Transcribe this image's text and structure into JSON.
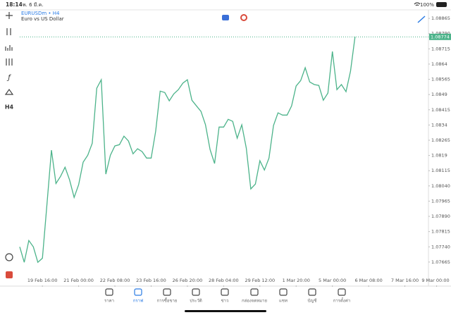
{
  "status_bar": {
    "time": "18:14",
    "date": "พ. 6 มี.ค.",
    "battery": "100%"
  },
  "symbol": {
    "name": "EURUSDm • H4",
    "description": "Euro vs US Dollar"
  },
  "toolbar": {
    "timeframe": "H4"
  },
  "chart_data": {
    "type": "line",
    "color": "#4cb38a",
    "values": [
      1.0774,
      1.07664,
      1.07771,
      1.0774,
      1.07664,
      1.07684,
      1.07948,
      1.08216,
      1.08052,
      1.08087,
      1.08132,
      1.0807,
      1.07983,
      1.08046,
      1.08157,
      1.08191,
      1.0825,
      1.08521,
      1.08563,
      1.08098,
      1.08191,
      1.08237,
      1.08243,
      1.08285,
      1.08261,
      1.08198,
      1.08223,
      1.08209,
      1.08177,
      1.08177,
      1.08309,
      1.08507,
      1.085,
      1.08459,
      1.08493,
      1.08514,
      1.08546,
      1.08563,
      1.08462,
      1.08434,
      1.08407,
      1.08341,
      1.08219,
      1.0815,
      1.0833,
      1.0833,
      1.08368,
      1.08358,
      1.08275,
      1.08341,
      1.08226,
      1.08025,
      1.08049,
      1.08164,
      1.08118,
      1.08177,
      1.08337,
      1.084,
      1.08389,
      1.08389,
      1.08434,
      1.08532,
      1.08559,
      1.08622,
      1.08552,
      1.08539,
      1.08535,
      1.08462,
      1.08497,
      1.08702,
      1.08514,
      1.08539,
      1.08504,
      1.08605,
      1.08774
    ],
    "last_price": 1.08774,
    "xlim": [
      0,
      90.2
    ],
    "xticks": [
      {
        "value": 5,
        "label": "19 Feb 16:00"
      },
      {
        "value": 13,
        "label": "21 Feb 00:00"
      },
      {
        "value": 21,
        "label": "22 Feb 08:00"
      },
      {
        "value": 29,
        "label": "23 Feb 16:00"
      },
      {
        "value": 37,
        "label": "26 Feb 20:00"
      },
      {
        "value": 45,
        "label": "28 Feb 04:00"
      },
      {
        "value": 53,
        "label": "29 Feb 12:00"
      },
      {
        "value": 61,
        "label": "1 Mar 20:00"
      },
      {
        "value": 69,
        "label": "5 Mar 00:00"
      },
      {
        "value": 77,
        "label": "6 Mar 08:00"
      },
      {
        "value": 85,
        "label": "7 Mar 16:00"
      },
      {
        "value": 92,
        "label": "9 Mar 00:00"
      }
    ],
    "ylim": [
      1.0755,
      1.08907
    ],
    "yticks": [
      1.08865,
      {
        "value": 1.0879,
        "label": "1.08790"
      },
      1.08715,
      1.0864,
      1.08565,
      1.0849,
      1.08415,
      1.0834,
      1.08265,
      1.0819,
      1.08115,
      {
        "value": 1.0804,
        "label": "1.08040"
      },
      1.07965,
      {
        "value": 1.0789,
        "label": "1.07890"
      },
      1.07815,
      {
        "value": 1.0774,
        "label": "1.07740"
      },
      1.07665
    ]
  },
  "nav": {
    "items": [
      "ราคา",
      "กราฟ",
      "การซื้อขาย",
      "ประวัติ",
      "ข่าว",
      "กล่องจดหมาย",
      "แชท",
      "บัญชี",
      "การตั้งค่า"
    ]
  }
}
